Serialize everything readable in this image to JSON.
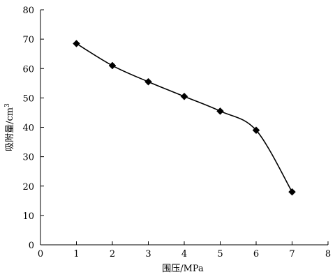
{
  "chart_data": {
    "type": "line",
    "title": "",
    "xlabel": "围压/MPa",
    "ylabel_main": "吸附量/cm",
    "ylabel_sup": "3",
    "xlim": [
      0,
      8
    ],
    "ylim": [
      0,
      80
    ],
    "x_ticks": [
      0,
      1,
      2,
      3,
      4,
      5,
      6,
      7,
      8
    ],
    "y_ticks": [
      0,
      10,
      20,
      30,
      40,
      50,
      60,
      70,
      80
    ],
    "grid": false,
    "legend": "none",
    "marker": "diamond",
    "line_color": "#000000",
    "series": [
      {
        "x": [
          1,
          2,
          3,
          4,
          5,
          6,
          7
        ],
        "y": [
          68.5,
          61,
          55.5,
          50.5,
          45.5,
          39,
          18
        ]
      }
    ]
  }
}
